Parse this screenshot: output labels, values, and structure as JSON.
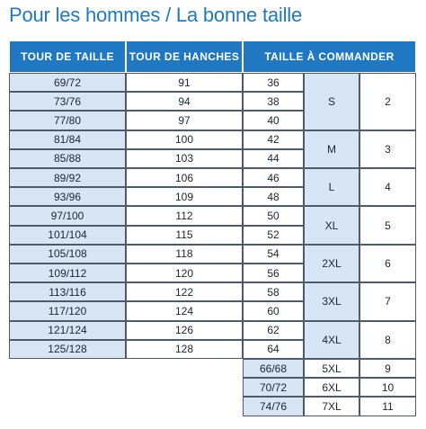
{
  "title": "Pour les hommes / La bonne taille",
  "headers": {
    "waist": "TOUR DE TAILLE",
    "hips": "TOUR DE HANCHES",
    "order": "TAILLE À COMMANDER"
  },
  "rows": [
    {
      "waist": "69/72",
      "hips": "91",
      "size": "36"
    },
    {
      "waist": "73/76",
      "hips": "94",
      "size": "38"
    },
    {
      "waist": "77/80",
      "hips": "97",
      "size": "40"
    },
    {
      "waist": "81/84",
      "hips": "100",
      "size": "42"
    },
    {
      "waist": "85/88",
      "hips": "103",
      "size": "44"
    },
    {
      "waist": "89/92",
      "hips": "106",
      "size": "46"
    },
    {
      "waist": "93/96",
      "hips": "109",
      "size": "48"
    },
    {
      "waist": "97/100",
      "hips": "112",
      "size": "50"
    },
    {
      "waist": "101/104",
      "hips": "115",
      "size": "52"
    },
    {
      "waist": "105/108",
      "hips": "118",
      "size": "54"
    },
    {
      "waist": "109/112",
      "hips": "120",
      "size": "56"
    },
    {
      "waist": "113/116",
      "hips": "122",
      "size": "58"
    },
    {
      "waist": "117/120",
      "hips": "124",
      "size": "60"
    },
    {
      "waist": "121/124",
      "hips": "126",
      "size": "62"
    },
    {
      "waist": "125/128",
      "hips": "128",
      "size": "64"
    }
  ],
  "groups": [
    {
      "letter": "S",
      "number": "2",
      "span": 3
    },
    {
      "letter": "M",
      "number": "3",
      "span": 2
    },
    {
      "letter": "L",
      "number": "4",
      "span": 2
    },
    {
      "letter": "XL",
      "number": "5",
      "span": 2
    },
    {
      "letter": "2XL",
      "number": "6",
      "span": 2
    },
    {
      "letter": "3XL",
      "number": "7",
      "span": 2
    },
    {
      "letter": "4XL",
      "number": "8",
      "span": 2
    }
  ],
  "extra_rows": [
    {
      "size": "66/68",
      "letter": "5XL",
      "number": "9"
    },
    {
      "size": "70/72",
      "letter": "6XL",
      "number": "10"
    },
    {
      "size": "74/76",
      "letter": "7XL",
      "number": "11"
    }
  ]
}
